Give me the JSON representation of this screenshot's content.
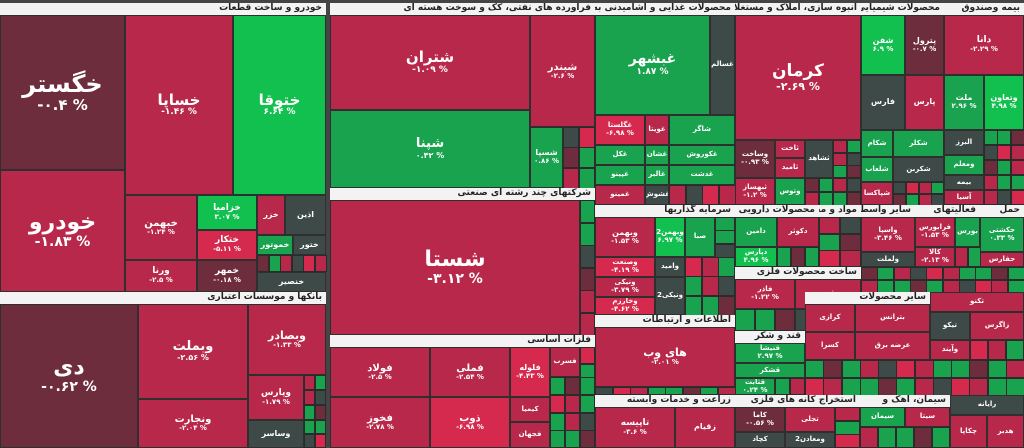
{
  "chart_data": {
    "type": "treemap",
    "colors": {
      "dark_red": "#6e2d3d",
      "red": "#b8284a",
      "bright_red": "#d6294e",
      "neutral": "#3d4a47",
      "green": "#1aa34f",
      "bright_green": "#12c04f"
    },
    "sectors": [
      {
        "name": "خودرو و ساخت قطعات",
        "id": "s1"
      },
      {
        "name": "فراورده های نفتی، کک و سوخت هسته ای",
        "id": "s2"
      },
      {
        "name": "محصولات غذایی و آشامیدنی به جز",
        "id": "s3"
      },
      {
        "name": "انبوه سازی، املاک و مستغلات",
        "id": "s4"
      },
      {
        "name": "محصولات شیمیایی",
        "id": "s5"
      },
      {
        "name": "بیمه وصندوق",
        "id": "s6"
      },
      {
        "name": "بانکها و موسسات اعتباری",
        "id": "s7"
      },
      {
        "name": "شرکتهای چند رشته ای صنعتی",
        "id": "s8"
      },
      {
        "name": "فلزات اساسی",
        "id": "s9"
      },
      {
        "name": "سرمایه گذاریها",
        "id": "s10"
      },
      {
        "name": "محصولات دارویی",
        "id": "s11"
      },
      {
        "name": "مواد و محصولات دارویی",
        "id": "s12"
      },
      {
        "name": "سایر واسطه",
        "id": "s13"
      },
      {
        "name": "فعالیتهای",
        "id": "s14"
      },
      {
        "name": "حمل",
        "id": "s15"
      },
      {
        "name": "اطلاعات و ارتباطات",
        "id": "s16"
      },
      {
        "name": "ساخت محصولات فلزی",
        "id": "s17"
      },
      {
        "name": "قند و شکر",
        "id": "s18"
      },
      {
        "name": "سایر محصولات",
        "id": "s19"
      },
      {
        "name": "زراعت و خدمات وابسته",
        "id": "s20"
      },
      {
        "name": "استخراج کانه های فلزی",
        "id": "s21"
      },
      {
        "name": "سیمان، آهک و",
        "id": "s22"
      }
    ],
    "stocks": [
      {
        "name": "خگستر",
        "value": "-۰.۴ %",
        "change": -0.4
      },
      {
        "name": "خودرو",
        "value": "-۱.۸۳ %",
        "change": -1.83
      },
      {
        "name": "خساپا",
        "value": "-۱.۴۶ %",
        "change": -1.46
      },
      {
        "name": "ختوقا",
        "value": "۶.۶۴ %",
        "change": 6.64
      },
      {
        "name": "خبهمن",
        "value": "-۱.۲۴ %",
        "change": -1.24
      },
      {
        "name": "خزامیا",
        "value": "۳.۰۷ %",
        "change": 3.07
      },
      {
        "name": "ختکار",
        "value": "-۵.۱۱ %",
        "change": -5.11
      },
      {
        "name": "ورنا",
        "value": "-۲.۵ %",
        "change": -2.5
      },
      {
        "name": "خمهر",
        "value": "-۰.۱۸ %",
        "change": -0.18
      },
      {
        "name": "خزر",
        "value": "",
        "change": -1.0
      },
      {
        "name": "اذین",
        "value": "",
        "change": 0
      },
      {
        "name": "خموتور",
        "value": "",
        "change": 1.0
      },
      {
        "name": "ختور",
        "value": "",
        "change": 0
      },
      {
        "name": "خنصیر",
        "value": "",
        "change": 0
      },
      {
        "name": "شتران",
        "value": "-۱.۰۹ %",
        "change": -1.09
      },
      {
        "name": "شبندر",
        "value": "-۲.۶ %",
        "change": -2.6
      },
      {
        "name": "شپنا",
        "value": "۰.۴۲ %",
        "change": 0.42
      },
      {
        "name": "شسپا",
        "value": "۰.۸۶ %",
        "change": 0.86
      },
      {
        "name": "غبشهر",
        "value": "۱.۸۷ %",
        "change": 1.87
      },
      {
        "name": "غسالم",
        "value": "",
        "change": 0
      },
      {
        "name": "غگلستا",
        "value": "-۶.۹۸ %",
        "change": -6.98
      },
      {
        "name": "غویتا",
        "value": "",
        "change": -1.0
      },
      {
        "name": "شاگر",
        "value": "",
        "change": 1.0
      },
      {
        "name": "غپینو",
        "value": "",
        "change": 1.0
      },
      {
        "name": "غکل",
        "value": "",
        "change": 1.0
      },
      {
        "name": "غشان",
        "value": "",
        "change": 1.0
      },
      {
        "name": "غکوروش",
        "value": "",
        "change": 1.0
      },
      {
        "name": "غالبر",
        "value": "",
        "change": 1.0
      },
      {
        "name": "غدشت",
        "value": "",
        "change": 1.0
      },
      {
        "name": "غپینو۲",
        "value": "",
        "change": -1.0
      },
      {
        "name": "غشوش",
        "value": "",
        "change": 0
      },
      {
        "name": "غمینو",
        "value": "",
        "change": -1.0
      },
      {
        "name": "کرمان",
        "value": "-۲.۶۹ %",
        "change": -2.69
      },
      {
        "name": "وساخت",
        "value": "-۰.۹۳ %",
        "change": -0.93
      },
      {
        "name": "ثاخت",
        "value": "",
        "change": -1.0
      },
      {
        "name": "ثامید",
        "value": "",
        "change": -1.0
      },
      {
        "name": "ثبهساز",
        "value": "-۱.۲ %",
        "change": -1.2
      },
      {
        "name": "ثشاهد",
        "value": "",
        "change": 0
      },
      {
        "name": "وتوس",
        "value": "",
        "change": 1.0
      },
      {
        "name": "شفن",
        "value": "۶.۹ %",
        "change": 6.9
      },
      {
        "name": "پترول",
        "value": "-۰.۷ %",
        "change": -0.7
      },
      {
        "name": "فارس",
        "value": "",
        "change": 0
      },
      {
        "name": "پارس",
        "value": "",
        "change": -1.0
      },
      {
        "name": "شکربن",
        "value": "",
        "change": 0
      },
      {
        "name": "شیراز",
        "value": "",
        "change": 1.0
      },
      {
        "name": "شکام",
        "value": "",
        "change": 1.0
      },
      {
        "name": "شکلر",
        "value": "",
        "change": 1.0
      },
      {
        "name": "شلعاب",
        "value": "",
        "change": 1.0
      },
      {
        "name": "شپاکسا",
        "value": "",
        "change": -1.0
      },
      {
        "name": "شستا",
        "value": "-۳.۱۲ %",
        "change": -3.12
      },
      {
        "name": "دانا",
        "value": "-۲.۲۹ %",
        "change": -2.29
      },
      {
        "name": "ملت",
        "value": "۲.۹۶ %",
        "change": 2.96
      },
      {
        "name": "وتعاون",
        "value": "۴.۹۸ %",
        "change": 4.98
      },
      {
        "name": "البرز",
        "value": "",
        "change": 0
      },
      {
        "name": "ومعلم",
        "value": "",
        "change": 1.0
      },
      {
        "name": "بیمه",
        "value": "",
        "change": 0
      },
      {
        "name": "آسیا",
        "value": "",
        "change": -1.0
      },
      {
        "name": "دی",
        "value": "-۰.۶۲ %",
        "change": -0.62
      },
      {
        "name": "وبملت",
        "value": "-۲.۵۶ %",
        "change": -2.56
      },
      {
        "name": "وبصادر",
        "value": "-۱.۳۳ %",
        "change": -1.33
      },
      {
        "name": "ونجارت",
        "value": "-۲.۰۴ %",
        "change": -2.04
      },
      {
        "name": "وپارس",
        "value": "-۱.۷۹ %",
        "change": -1.79
      },
      {
        "name": "وساسر",
        "value": "",
        "change": 0
      },
      {
        "name": "فولاد",
        "value": "-۲.۵ %",
        "change": -2.5
      },
      {
        "name": "فملی",
        "value": "-۲.۵۴ %",
        "change": -2.54
      },
      {
        "name": "فخوز",
        "value": "-۲.۷۸ %",
        "change": -2.78
      },
      {
        "name": "ذوب",
        "value": "-۶.۹۸ %",
        "change": -6.98
      },
      {
        "name": "فلوله",
        "value": "-۴.۴۳ %",
        "change": -4.43
      },
      {
        "name": "فسرب",
        "value": "",
        "change": -1.0
      },
      {
        "name": "کیمیا",
        "value": "",
        "change": -1.0
      },
      {
        "name": "فجهان",
        "value": "",
        "change": -1.0
      },
      {
        "name": "وبهمن",
        "value": "-۱.۵۳ %",
        "change": -1.53
      },
      {
        "name": "ومعادن",
        "value": "",
        "change": 0
      },
      {
        "name": "وبهمن2",
        "value": "۶.۹۷ %",
        "change": 6.97
      },
      {
        "name": "صبا",
        "value": "",
        "change": 1.0
      },
      {
        "name": "وصنعت",
        "value": "-۴.۱۹ %",
        "change": -4.19
      },
      {
        "name": "ونیکی",
        "value": "-۳.۷۹ %",
        "change": -3.79
      },
      {
        "name": "وخارزم",
        "value": "-۴.۶۲ %",
        "change": -4.62
      },
      {
        "name": "ونیکی2",
        "value": "",
        "change": 0
      },
      {
        "name": "وامید",
        "value": "",
        "change": 0
      },
      {
        "name": "دامین",
        "value": "",
        "change": 1.0
      },
      {
        "name": "دکوثر",
        "value": "",
        "change": -1.0
      },
      {
        "name": "دپارس",
        "value": "۴.۹۶ %",
        "change": 4.96
      },
      {
        "name": "واسپا",
        "value": "-۳.۴۶ %",
        "change": -3.46
      },
      {
        "name": "ولملت",
        "value": "",
        "change": 0
      },
      {
        "name": "فرابورس",
        "value": "-۱.۵۳ %",
        "change": -1.53
      },
      {
        "name": "بورس",
        "value": "",
        "change": 1.0
      },
      {
        "name": "کالا",
        "value": "-۲.۱۳ %",
        "change": -2.13
      },
      {
        "name": "حکشتی",
        "value": "۰.۳۳ %",
        "change": 0.33
      },
      {
        "name": "حفارس",
        "value": "",
        "change": -1.0
      },
      {
        "name": "های وب",
        "value": "-۲.۰۱ %",
        "change": -2.01
      },
      {
        "name": "فاذر",
        "value": "-۱.۲۲ %",
        "change": -1.22
      },
      {
        "name": "فجر",
        "value": "",
        "change": -1.0
      },
      {
        "name": "فارک",
        "value": "",
        "change": 0
      },
      {
        "name": "قثابت",
        "value": "۰.۲۴ %",
        "change": 0.24
      },
      {
        "name": "قشکر",
        "value": "",
        "change": 1.0
      },
      {
        "name": "قنیشا",
        "value": "۲.۹۷ %",
        "change": 2.97
      },
      {
        "name": "کرازی",
        "value": "",
        "change": -1.0
      },
      {
        "name": "کسرا",
        "value": "",
        "change": -1.0
      },
      {
        "name": "بترانس",
        "value": "",
        "change": -1.0
      },
      {
        "name": "عرضه برق",
        "value": "",
        "change": -1.0
      },
      {
        "name": "تکنو",
        "value": "",
        "change": -1.0
      },
      {
        "name": "تیکو",
        "value": "",
        "change": 0
      },
      {
        "name": "وآیند",
        "value": "",
        "change": -1.0
      },
      {
        "name": "زاگرس",
        "value": "",
        "change": -1.0
      },
      {
        "name": "تاپیسه",
        "value": "-۳.۶ %",
        "change": -3.6
      },
      {
        "name": "زقیام",
        "value": "",
        "change": -1.0
      },
      {
        "name": "کاما",
        "value": "-۰.۵۶ %",
        "change": -0.56
      },
      {
        "name": "کچاد",
        "value": "",
        "change": 0
      },
      {
        "name": "تجلی",
        "value": "",
        "change": -1.0
      },
      {
        "name": "ومعادن2",
        "value": "",
        "change": 0
      },
      {
        "name": "سیتا",
        "value": "",
        "change": -1.0
      },
      {
        "name": "سیمان",
        "value": "",
        "change": 1.0
      },
      {
        "name": "رایانه",
        "value": "",
        "change": 0
      },
      {
        "name": "چکاپا",
        "value": "",
        "change": -1.0
      },
      {
        "name": "هدبر",
        "value": "",
        "change": -1.0
      }
    ]
  },
  "labels": {
    "dot": "%"
  }
}
